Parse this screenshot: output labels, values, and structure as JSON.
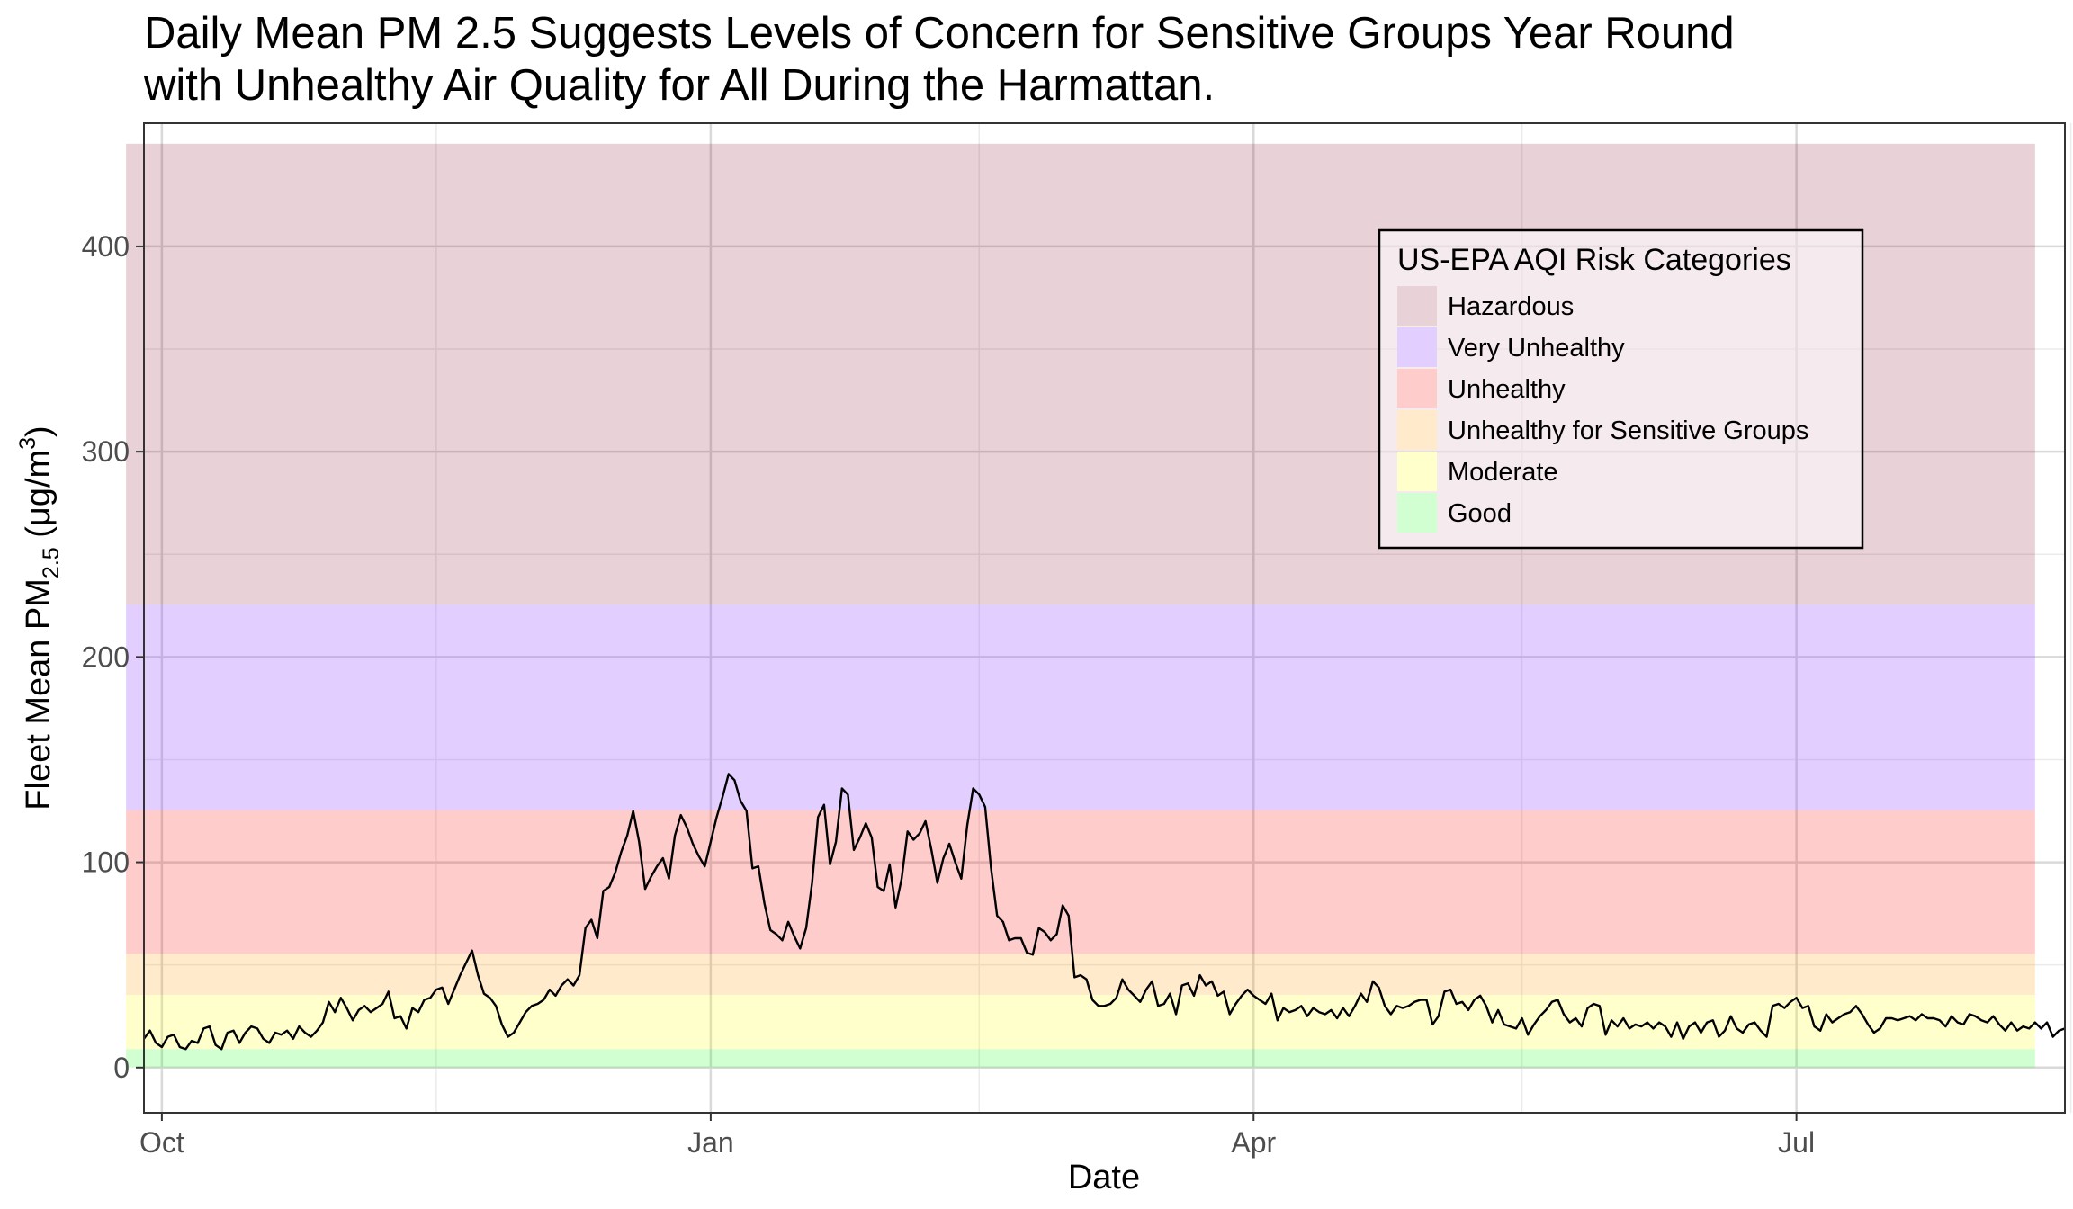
{
  "title": {
    "line1": "Daily Mean PM 2.5 Suggests Levels of Concern for Sensitive Groups Year Round",
    "line2": "with Unhealthy Air Quality for All During the Harmattan."
  },
  "chart_data": {
    "type": "line",
    "xlabel": "Date",
    "ylabel_main": "Fleet Mean  PM",
    "ylabel_sub": "2.5",
    "ylabel_unit": " (μg/m",
    "ylabel_sup": "3",
    "ylabel_close": ")",
    "x_range": [
      "2023-09-28",
      "2024-08-15"
    ],
    "ylim": [
      -22,
      460
    ],
    "grid": true,
    "x_ticks": [
      {
        "date": "2023-10-01",
        "label": "Oct"
      },
      {
        "date": "2024-01-01",
        "label": "Jan"
      },
      {
        "date": "2024-04-01",
        "label": "Apr"
      },
      {
        "date": "2024-07-01",
        "label": "Jul"
      }
    ],
    "x_minor_ticks": [
      "2023-11-16",
      "2024-02-15",
      "2024-05-16",
      "2024-08-16"
    ],
    "y_ticks": [
      0,
      100,
      200,
      300,
      400
    ],
    "y_minor_ticks": [
      50,
      150,
      250,
      350
    ],
    "bands_x_range": [
      "2023-09-25",
      "2024-08-10"
    ],
    "bands": [
      {
        "name": "Good",
        "from": 0,
        "to": 9,
        "color": "#00ff00",
        "opacity": 0.18
      },
      {
        "name": "Moderate",
        "from": 9,
        "to": 35.4,
        "color": "#ffff00",
        "opacity": 0.2
      },
      {
        "name": "Unhealthy for Sensitive Groups",
        "from": 35.4,
        "to": 55.4,
        "color": "#ff9900",
        "opacity": 0.2
      },
      {
        "name": "Unhealthy",
        "from": 55.4,
        "to": 125.4,
        "color": "#ff0000",
        "opacity": 0.2
      },
      {
        "name": "Very Unhealthy",
        "from": 125.4,
        "to": 225.4,
        "color": "#8f3fff",
        "opacity": 0.25
      },
      {
        "name": "Hazardous",
        "from": 225.4,
        "to": 450,
        "color": "#7e0023",
        "opacity": 0.18
      }
    ],
    "line_color": "#000000",
    "legend": {
      "title": "US-EPA AQI Risk Categories",
      "position": "top-right",
      "items": [
        "Hazardous",
        "Very Unhealthy",
        "Unhealthy",
        "Unhealthy for Sensitive Groups",
        "Moderate",
        "Good"
      ]
    },
    "series": [
      {
        "start_date": "2023-09-28",
        "step_days": 1,
        "values": [
          14,
          18,
          12,
          10,
          15,
          16,
          10,
          9,
          13,
          12,
          19,
          20,
          11,
          9,
          17,
          18,
          12,
          17,
          20,
          19,
          14,
          12,
          17,
          16,
          18,
          14,
          20,
          17,
          15,
          18,
          22,
          32,
          27,
          34,
          29,
          23,
          28,
          30,
          27,
          29,
          31,
          37,
          24,
          25,
          19,
          29,
          27,
          33,
          34,
          38,
          39,
          31,
          38,
          45,
          51,
          57,
          45,
          36,
          34,
          30,
          21,
          15,
          17,
          22,
          27,
          30,
          31,
          33,
          38,
          35,
          40,
          43,
          40,
          45,
          68,
          72,
          63,
          86,
          88,
          95,
          105,
          113,
          125,
          110,
          87,
          93,
          98,
          102,
          92,
          113,
          123,
          117,
          109,
          103,
          98,
          110,
          122,
          132,
          143,
          140,
          130,
          125,
          97,
          98,
          80,
          67,
          65,
          62,
          71,
          64,
          58,
          68,
          90,
          122,
          128,
          99,
          110,
          136,
          133,
          106,
          112,
          119,
          112,
          88,
          86,
          99,
          78,
          92,
          115,
          111,
          114,
          120,
          106,
          90,
          102,
          109,
          100,
          92,
          118,
          136,
          133,
          127,
          97,
          74,
          71,
          62,
          63,
          63,
          56,
          55,
          68,
          66,
          62,
          65,
          79,
          74,
          44,
          45,
          43,
          33,
          30,
          30,
          31,
          34,
          43,
          38,
          35,
          32,
          38,
          42,
          30,
          31,
          36,
          26,
          40,
          41,
          35,
          45,
          40,
          42,
          35,
          37,
          26,
          31,
          35,
          38,
          35,
          33,
          31,
          36,
          23,
          29,
          27,
          28,
          30,
          25,
          29,
          27,
          26,
          28,
          24,
          29,
          25,
          30,
          36,
          32,
          42,
          39,
          30,
          26,
          30,
          29,
          30,
          32,
          33,
          33,
          21,
          25,
          37,
          38,
          31,
          32,
          28,
          33,
          35,
          30,
          22,
          28,
          21,
          20,
          19,
          24,
          16,
          21,
          25,
          28,
          32,
          33,
          26,
          22,
          24,
          20,
          29,
          31,
          30,
          16,
          23,
          20,
          24,
          19,
          21,
          20,
          22,
          19,
          22,
          20,
          15,
          22,
          14,
          20,
          22,
          17,
          22,
          23,
          15,
          18,
          25,
          19,
          17,
          21,
          22,
          18,
          15,
          30,
          31,
          29,
          32,
          34,
          29,
          30,
          20,
          18,
          26,
          22,
          24,
          26,
          27,
          30,
          26,
          21,
          17,
          19,
          24,
          24,
          23,
          24,
          25,
          23,
          26,
          24,
          24,
          23,
          20,
          25,
          22,
          21,
          26,
          25,
          23,
          22,
          25,
          21,
          18,
          22,
          18,
          20,
          19,
          22,
          19,
          22,
          15,
          18,
          19
        ]
      }
    ]
  }
}
